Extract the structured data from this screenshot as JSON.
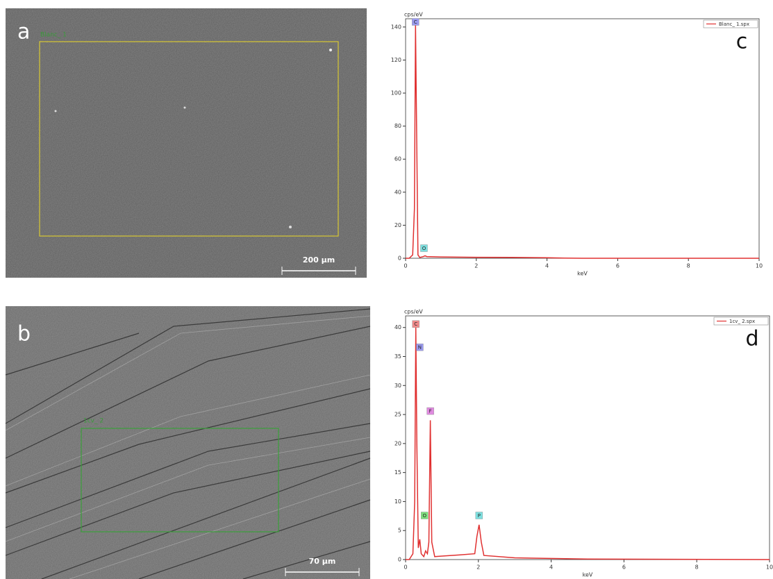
{
  "images": [
    {
      "label": "a",
      "region_label": "Blanc_ 1",
      "scale_bar": "200 µm"
    },
    {
      "label": "b",
      "region_label": "1cv_ 2",
      "scale_bar": "70 µm"
    }
  ],
  "chart_data": [
    {
      "type": "line",
      "panel_label": "c",
      "y_axis_label": "cps/eV",
      "x_axis_label": "keV",
      "x": [
        0,
        0.1,
        0.2,
        0.25,
        0.28,
        0.3,
        0.35,
        0.4,
        0.5,
        0.55,
        0.6,
        1,
        2,
        3,
        4,
        4.5,
        5,
        10
      ],
      "series": [
        {
          "name": "Blanc_ 1.spx",
          "color": "#e03030",
          "values": [
            0,
            0,
            2,
            30,
            141,
            100,
            2,
            0.5,
            1,
            1.5,
            1,
            0.8,
            0.6,
            0.5,
            0.3,
            0.1,
            0,
            0
          ]
        }
      ],
      "peaks": [
        {
          "label": "C",
          "x": 0.28,
          "y": 141,
          "color": "#9b9bf0"
        },
        {
          "label": "O",
          "x": 0.52,
          "y": 4,
          "color": "#7ee0e0"
        }
      ],
      "xlim": [
        0,
        10
      ],
      "ylim": [
        0,
        145
      ],
      "xticks": [
        0,
        2,
        4,
        6,
        8,
        10
      ],
      "yticks": [
        0,
        20,
        40,
        60,
        80,
        100,
        120,
        140
      ]
    },
    {
      "type": "line",
      "panel_label": "d",
      "y_axis_label": "cps/eV",
      "x_axis_label": "keV",
      "x": [
        0,
        0.1,
        0.2,
        0.25,
        0.28,
        0.31,
        0.35,
        0.39,
        0.43,
        0.5,
        0.55,
        0.6,
        0.64,
        0.68,
        0.72,
        0.8,
        1,
        1.5,
        1.9,
        1.96,
        2.02,
        2.08,
        2.15,
        3,
        5,
        10
      ],
      "series": [
        {
          "name": "1cv_ 2.spx",
          "color": "#e03030",
          "values": [
            0,
            0,
            1,
            10,
            40,
            20,
            2,
            3.5,
            1,
            0.5,
            1.5,
            1,
            3,
            24,
            3,
            0.5,
            0.6,
            0.8,
            1,
            4,
            6,
            3,
            0.7,
            0.3,
            0.1,
            0
          ]
        }
      ],
      "peaks": [
        {
          "label": "C",
          "x": 0.28,
          "y": 40,
          "color": "#f08a8a"
        },
        {
          "label": "N",
          "x": 0.39,
          "y": 36,
          "color": "#9b9bf0"
        },
        {
          "label": "O",
          "x": 0.52,
          "y": 7,
          "color": "#7ee07e"
        },
        {
          "label": "F",
          "x": 0.68,
          "y": 25,
          "color": "#e08ae0"
        },
        {
          "label": "P",
          "x": 2.02,
          "y": 7,
          "color": "#7ee0e0"
        }
      ],
      "xlim": [
        0,
        10
      ],
      "ylim": [
        0,
        42
      ],
      "xticks": [
        0,
        2,
        4,
        6,
        8,
        10
      ],
      "yticks": [
        0,
        5,
        10,
        15,
        20,
        25,
        30,
        35,
        40
      ]
    }
  ]
}
